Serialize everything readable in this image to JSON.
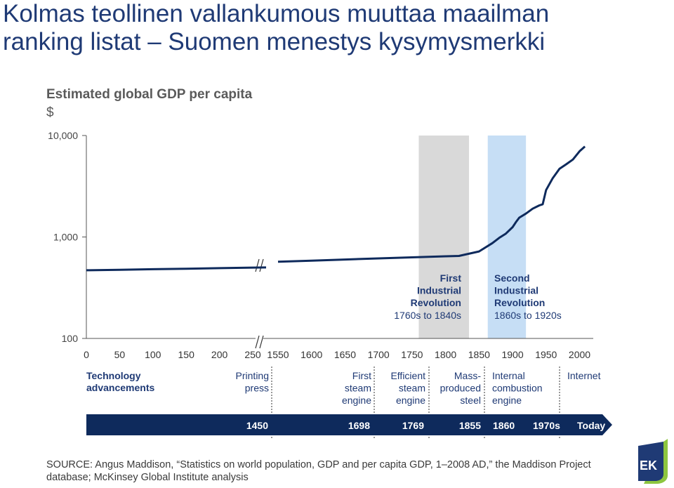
{
  "slide": {
    "title_line1": "Kolmas teollinen vallankumous muuttaa maailman",
    "title_line2": "ranking listat – Suomen menestys kysymysmerkki"
  },
  "chart_data": {
    "type": "line",
    "title": "Estimated global GDP per capita",
    "ylabel": "$",
    "yscale": "log",
    "ylim": [
      100,
      10000
    ],
    "ytick_labels": [
      "10,000",
      "1,000",
      "100"
    ],
    "x_segments": [
      {
        "ticks": [
          0,
          50,
          100,
          150,
          200,
          250
        ]
      },
      {
        "ticks": [
          1550,
          1600,
          1650,
          1700,
          1750,
          1800,
          1850,
          1900,
          1950,
          2000
        ]
      }
    ],
    "series": [
      {
        "points": [
          [
            0,
            470
          ],
          [
            50,
            475
          ],
          [
            100,
            481
          ],
          [
            150,
            487
          ],
          [
            200,
            493
          ],
          [
            250,
            499
          ],
          [
            270,
            501
          ],
          [
            1550,
            570
          ],
          [
            1600,
            584
          ],
          [
            1650,
            600
          ],
          [
            1700,
            615
          ],
          [
            1750,
            630
          ],
          [
            1800,
            645
          ],
          [
            1820,
            650
          ],
          [
            1850,
            720
          ],
          [
            1870,
            870
          ],
          [
            1880,
            980
          ],
          [
            1890,
            1080
          ],
          [
            1900,
            1250
          ],
          [
            1905,
            1400
          ],
          [
            1910,
            1550
          ],
          [
            1920,
            1700
          ],
          [
            1930,
            1900
          ],
          [
            1940,
            2050
          ],
          [
            1945,
            2100
          ],
          [
            1950,
            2900
          ],
          [
            1960,
            3800
          ],
          [
            1970,
            4700
          ],
          [
            1980,
            5200
          ],
          [
            1990,
            5800
          ],
          [
            2000,
            7000
          ],
          [
            2008,
            7800
          ]
        ]
      }
    ],
    "shaded_periods": [
      {
        "from": 1760,
        "to": 1835,
        "color": "#d9d9d9",
        "label_lines": [
          "First",
          "Industrial",
          "Revolution"
        ],
        "range_text": "1760s to 1840s"
      },
      {
        "from": 1863,
        "to": 1920,
        "color": "#c6def5",
        "label_lines": [
          "Second",
          "Industrial",
          "Revolution"
        ],
        "range_text": "1860s to 1920s"
      }
    ],
    "advancements": {
      "header_lines": [
        "Technology",
        "advancements"
      ],
      "items": [
        {
          "lines": [
            "Printing",
            "press"
          ]
        },
        {
          "lines": [
            "First",
            "steam",
            "engine"
          ]
        },
        {
          "lines": [
            "Efficient",
            "steam",
            "engine"
          ]
        },
        {
          "lines": [
            "Mass-",
            "produced",
            "steel"
          ]
        },
        {
          "lines": [
            "Internal",
            "combustion",
            "engine"
          ]
        },
        {
          "lines": [
            "Internet"
          ]
        }
      ]
    },
    "timeline_labels": [
      "1450",
      "1698",
      "1769",
      "1855",
      "1860",
      "1970s",
      "Today"
    ],
    "colors": {
      "line": "#0e2a5c",
      "arrow": "#0e2a5c",
      "grey_band": "#d9d9d9",
      "blue_band": "#c6def5"
    }
  },
  "source": {
    "line1": "SOURCE:  Angus Maddison, “Statistics on world population, GDP and per capita GDP, 1–2008 AD,” the Maddison Project",
    "line2": "database; McKinsey Global Institute analysis"
  },
  "logo": {
    "text": "EK",
    "colors": [
      "#1f3a75",
      "#8dc63f"
    ]
  }
}
